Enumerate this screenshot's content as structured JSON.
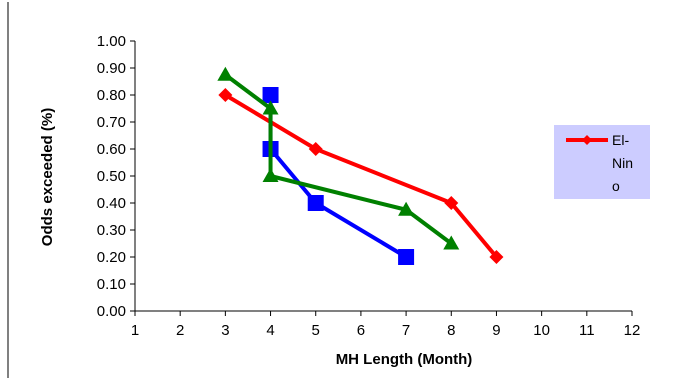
{
  "chart_data": {
    "type": "line",
    "title": "",
    "xlabel": "MH Length (Month)",
    "ylabel": "Odds exceeded (%)",
    "xlim": [
      1,
      12
    ],
    "ylim": [
      0,
      1
    ],
    "x_ticks": [
      "1",
      "2",
      "3",
      "4",
      "5",
      "6",
      "7",
      "8",
      "9",
      "10",
      "11",
      "12"
    ],
    "y_ticks": [
      "0.00",
      "0.10",
      "0.20",
      "0.30",
      "0.40",
      "0.50",
      "0.60",
      "0.70",
      "0.80",
      "0.90",
      "1.00"
    ],
    "grid": false,
    "legend": {
      "position": "right",
      "entries": [
        "El-Nino"
      ]
    },
    "series": [
      {
        "name": "El-Nino",
        "color": "#ff0000",
        "marker": "diamond",
        "points": [
          [
            3,
            0.8
          ],
          [
            5,
            0.6
          ],
          [
            8,
            0.4
          ],
          [
            9,
            0.2
          ]
        ]
      },
      {
        "color": "#0000ff",
        "marker": "square",
        "points": [
          [
            4,
            0.8
          ],
          [
            4,
            0.6
          ],
          [
            5,
            0.4
          ],
          [
            7,
            0.2
          ]
        ]
      },
      {
        "color": "#008000",
        "marker": "triangle",
        "points": [
          [
            3,
            0.875
          ],
          [
            4,
            0.75
          ],
          [
            4,
            0.5
          ],
          [
            7,
            0.375
          ],
          [
            8,
            0.25
          ]
        ]
      }
    ]
  },
  "legend_label_lines": [
    "El-",
    "Nin",
    "o"
  ],
  "colors": {
    "legend_bg": "#ccccff",
    "axis": "#000000"
  }
}
